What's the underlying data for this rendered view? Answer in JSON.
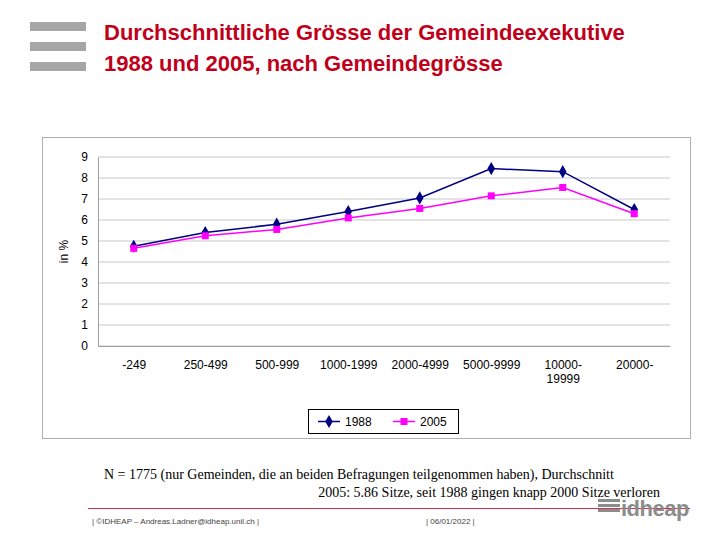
{
  "chart_data": {
    "type": "line",
    "title": [
      "Durchschnittliche Grösse der Gemeindeexekutive",
      "1988 und 2005, nach Gemeindegrösse"
    ],
    "y_label": "in %",
    "categories": [
      "-249",
      "250-499",
      "500-999",
      "1000-1999",
      "2000-4999",
      "5000-9999",
      "10000-19999",
      "20000-"
    ],
    "series": [
      {
        "name": "1988",
        "color": "#000080",
        "marker": "diamond",
        "values": [
          4.75,
          5.4,
          5.8,
          6.4,
          7.05,
          8.45,
          8.3,
          6.5
        ]
      },
      {
        "name": "2005",
        "color": "#ff00ff",
        "marker": "square",
        "values": [
          4.65,
          5.25,
          5.55,
          6.1,
          6.55,
          7.15,
          7.55,
          6.3
        ]
      }
    ],
    "ylim": [
      0,
      9
    ],
    "yticks": [
      0,
      1,
      2,
      3,
      4,
      5,
      6,
      7,
      8,
      9
    ],
    "grid": true,
    "legend": "bottom",
    "annotations": [
      "N = 1775 (nur Gemeinden, die an beiden Befragungen teilgenommen haben), Durchschnitt",
      "2005: 5.86 Sitze, seit 1988 gingen knapp 2000 Sitze verloren",
      "| ©IDHEAP – Andreas.Ladner@idheap.unil.ch |",
      "| 06/01/2022 |",
      "idheap"
    ]
  }
}
